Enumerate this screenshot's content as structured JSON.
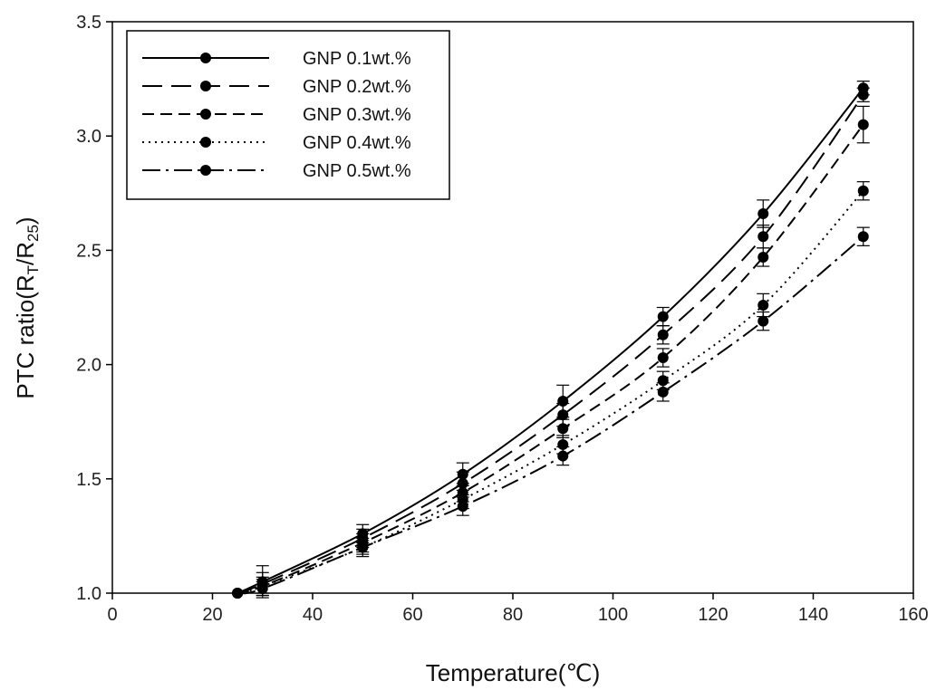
{
  "chart_data": {
    "type": "line",
    "title": "",
    "xlabel": "Temperature(℃)",
    "ylabel": "PTC ratio(R",
    "ylabel_sub1": "T",
    "ylabel_mid": "/R",
    "ylabel_sub2": "25",
    "ylabel_end": ")",
    "xlim": [
      0,
      160
    ],
    "ylim": [
      1.0,
      3.5
    ],
    "x_ticks": [
      0,
      20,
      40,
      60,
      80,
      100,
      120,
      140,
      160
    ],
    "x_tick_labels": [
      "0",
      "20",
      "40",
      "60",
      "80",
      "100",
      "120",
      "140",
      "160"
    ],
    "y_ticks": [
      1.0,
      1.5,
      2.0,
      2.5,
      3.0,
      3.5
    ],
    "y_tick_labels": [
      "1.0",
      "1.5",
      "2.0",
      "2.5",
      "3.0",
      "3.5"
    ],
    "grid": false,
    "legend_position": "top-left",
    "x": [
      25,
      30,
      50,
      70,
      90,
      110,
      130,
      150
    ],
    "series": [
      {
        "name": "GNP 0.1wt.%",
        "dash": "solid",
        "values": [
          1.0,
          1.05,
          1.26,
          1.52,
          1.84,
          2.21,
          2.66,
          3.21
        ],
        "errors": [
          0,
          0.07,
          0.04,
          0.05,
          0.07,
          0.04,
          0.06,
          0.03
        ]
      },
      {
        "name": "GNP 0.2wt.%",
        "dash": "longdash",
        "values": [
          1.0,
          1.04,
          1.24,
          1.48,
          1.78,
          2.13,
          2.56,
          3.18
        ],
        "errors": [
          0,
          0.05,
          0.04,
          0.05,
          0.05,
          0.04,
          0.05,
          0.03
        ]
      },
      {
        "name": "GNP 0.3wt.%",
        "dash": "dash",
        "values": [
          1.0,
          1.03,
          1.22,
          1.44,
          1.72,
          2.03,
          2.47,
          3.05
        ],
        "errors": [
          0,
          0.04,
          0.04,
          0.04,
          0.04,
          0.04,
          0.04,
          0.08
        ]
      },
      {
        "name": "GNP 0.4wt.%",
        "dash": "dot",
        "values": [
          1.0,
          1.03,
          1.2,
          1.41,
          1.65,
          1.93,
          2.26,
          2.76
        ],
        "errors": [
          0,
          0.03,
          0.04,
          0.04,
          0.04,
          0.04,
          0.05,
          0.04
        ]
      },
      {
        "name": "GNP 0.5wt.%",
        "dash": "dashdot",
        "values": [
          1.0,
          1.02,
          1.2,
          1.38,
          1.6,
          1.88,
          2.19,
          2.56
        ],
        "errors": [
          0,
          0.03,
          0.03,
          0.04,
          0.04,
          0.04,
          0.04,
          0.04
        ]
      }
    ]
  }
}
